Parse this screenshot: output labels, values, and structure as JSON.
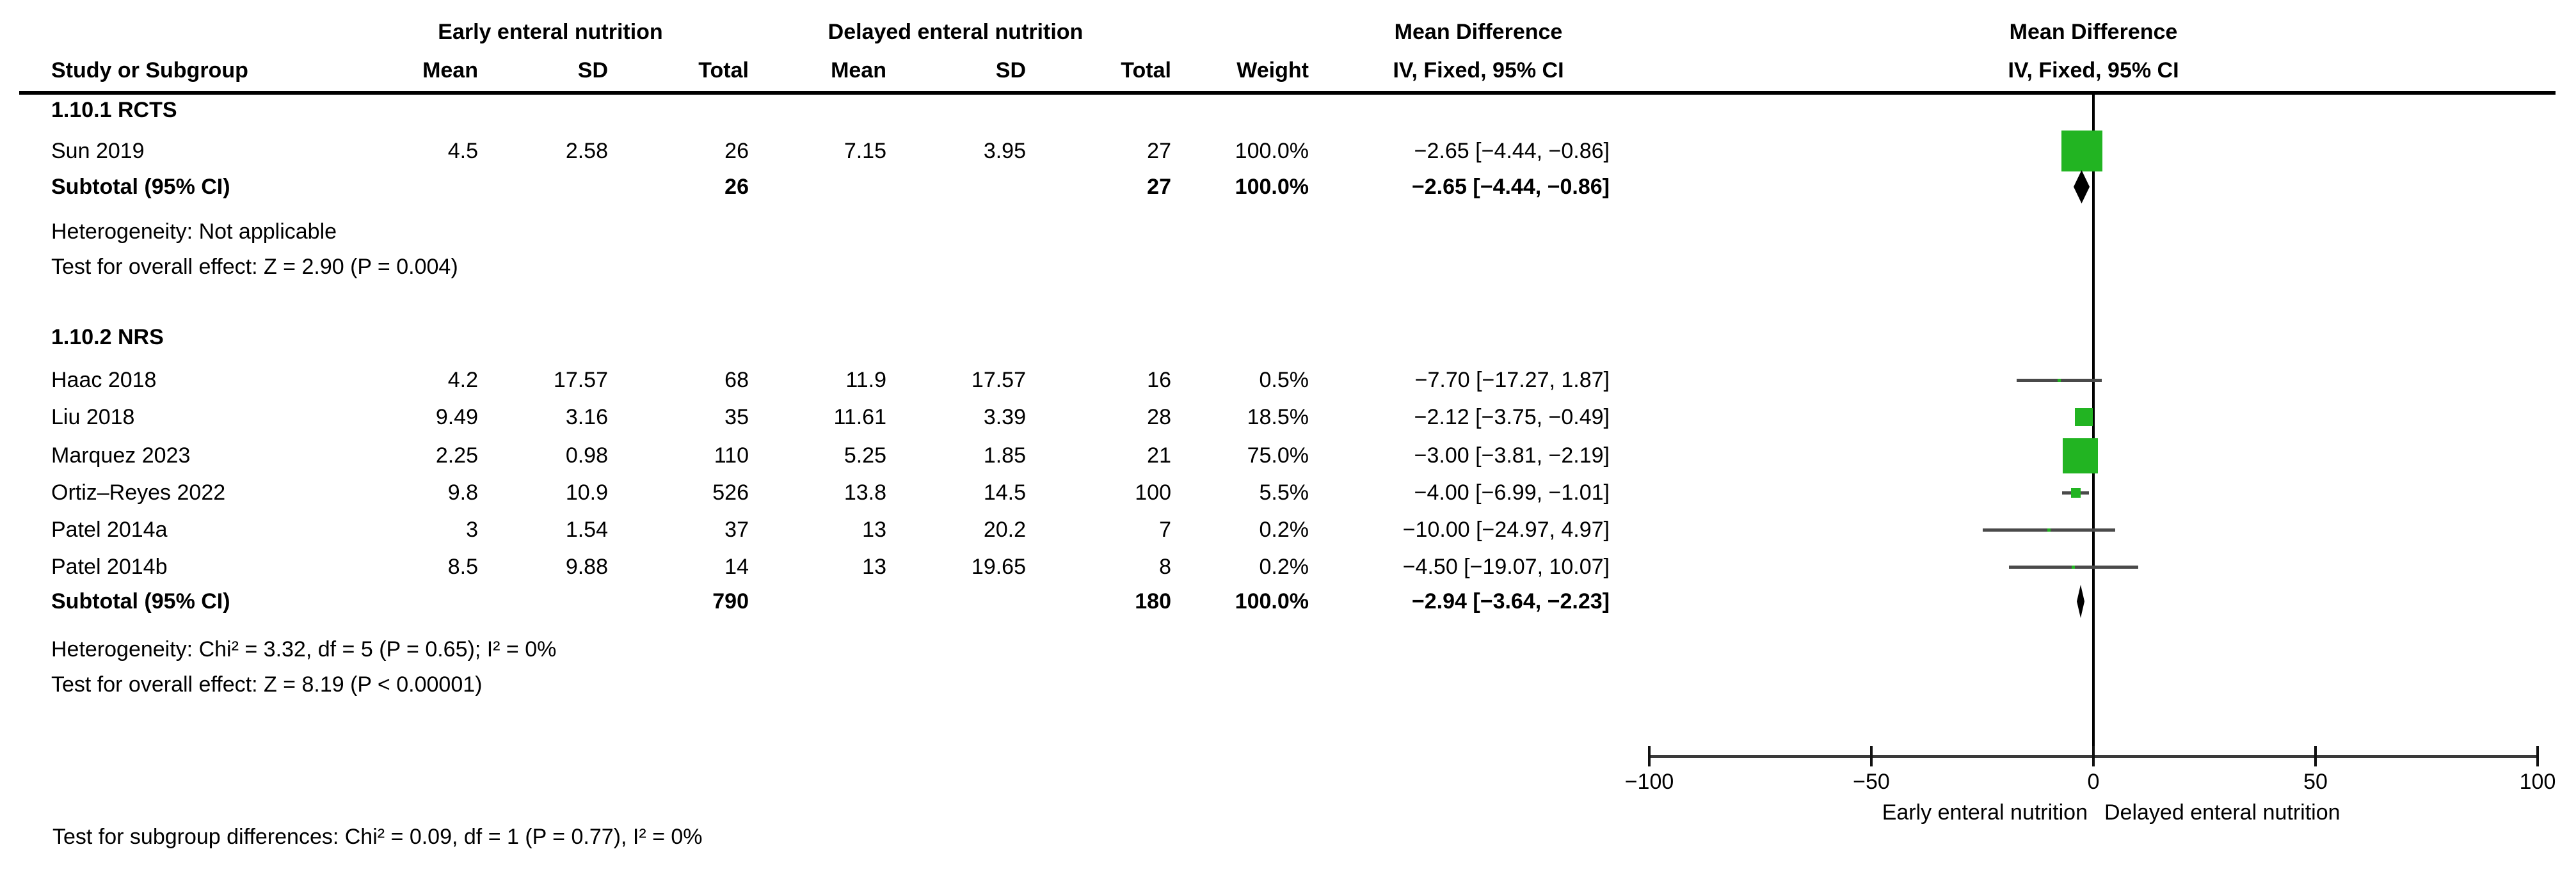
{
  "table": {
    "study_col_label": "Study or Subgroup",
    "group1_label": "Early enteral nutrition",
    "group2_label": "Delayed enteral nutrition",
    "effect_label": "Mean Difference",
    "method_label": "IV, Fixed, 95% CI",
    "col_mean": "Mean",
    "col_sd": "SD",
    "col_total": "Total",
    "col_weight": "Weight"
  },
  "plot_header": {
    "effect_label": "Mean Difference",
    "method_label": "IV, Fixed, 95% CI"
  },
  "subgroups": [
    {
      "title": "1.10.1 RCTS",
      "studies": [
        {
          "name": "Sun 2019",
          "mean1": "4.5",
          "sd1": "2.58",
          "total1": "26",
          "mean2": "7.15",
          "sd2": "3.95",
          "total2": "27",
          "weight": "100.0%",
          "ci_text": "−2.65 [−4.44, −0.86]",
          "md": -2.65,
          "ci_low": -4.44,
          "ci_high": -0.86,
          "weight_pct": 100.0
        }
      ],
      "subtotal": {
        "label": "Subtotal (95% CI)",
        "total1": "26",
        "total2": "27",
        "weight": "100.0%",
        "ci_text": "−2.65 [−4.44, −0.86]",
        "md": -2.65,
        "ci_low": -4.44,
        "ci_high": -0.86
      },
      "heterogeneity": "Heterogeneity: Not applicable",
      "overall_effect": "Test for overall effect: Z = 2.90 (P = 0.004)"
    },
    {
      "title": "1.10.2 NRS",
      "studies": [
        {
          "name": "Haac 2018",
          "mean1": "4.2",
          "sd1": "17.57",
          "total1": "68",
          "mean2": "11.9",
          "sd2": "17.57",
          "total2": "16",
          "weight": "0.5%",
          "ci_text": "−7.70 [−17.27, 1.87]",
          "md": -7.7,
          "ci_low": -17.27,
          "ci_high": 1.87,
          "weight_pct": 0.5
        },
        {
          "name": "Liu 2018",
          "mean1": "9.49",
          "sd1": "3.16",
          "total1": "35",
          "mean2": "11.61",
          "sd2": "3.39",
          "total2": "28",
          "weight": "18.5%",
          "ci_text": "−2.12 [−3.75, −0.49]",
          "md": -2.12,
          "ci_low": -3.75,
          "ci_high": -0.49,
          "weight_pct": 18.5
        },
        {
          "name": "Marquez 2023",
          "mean1": "2.25",
          "sd1": "0.98",
          "total1": "110",
          "mean2": "5.25",
          "sd2": "1.85",
          "total2": "21",
          "weight": "75.0%",
          "ci_text": "−3.00 [−3.81, −2.19]",
          "md": -3.0,
          "ci_low": -3.81,
          "ci_high": -2.19,
          "weight_pct": 75.0
        },
        {
          "name": "Ortiz–Reyes 2022",
          "mean1": "9.8",
          "sd1": "10.9",
          "total1": "526",
          "mean2": "13.8",
          "sd2": "14.5",
          "total2": "100",
          "weight": "5.5%",
          "ci_text": "−4.00 [−6.99, −1.01]",
          "md": -4.0,
          "ci_low": -6.99,
          "ci_high": -1.01,
          "weight_pct": 5.5
        },
        {
          "name": "Patel 2014a",
          "mean1": "3",
          "sd1": "1.54",
          "total1": "37",
          "mean2": "13",
          "sd2": "20.2",
          "total2": "7",
          "weight": "0.2%",
          "ci_text": "−10.00 [−24.97, 4.97]",
          "md": -10.0,
          "ci_low": -24.97,
          "ci_high": 4.97,
          "weight_pct": 0.2
        },
        {
          "name": "Patel 2014b",
          "mean1": "8.5",
          "sd1": "9.88",
          "total1": "14",
          "mean2": "13",
          "sd2": "19.65",
          "total2": "8",
          "weight": "0.2%",
          "ci_text": "−4.50 [−19.07, 10.07]",
          "md": -4.5,
          "ci_low": -19.07,
          "ci_high": 10.07,
          "weight_pct": 0.2
        }
      ],
      "subtotal": {
        "label": "Subtotal (95% CI)",
        "total1": "790",
        "total2": "180",
        "weight": "100.0%",
        "ci_text": "−2.94 [−3.64, −2.23]",
        "md": -2.94,
        "ci_low": -3.64,
        "ci_high": -2.23
      },
      "heterogeneity": "Heterogeneity: Chi² = 3.32, df = 5 (P = 0.65); I² = 0%",
      "overall_effect": "Test for overall effect: Z = 8.19 (P < 0.00001)"
    }
  ],
  "footer": {
    "subgroup_diff": "Test for subgroup differences: Chi² = 0.09, df = 1 (P = 0.77), I² = 0%"
  },
  "axis": {
    "tick_values": [
      -100,
      -50,
      0,
      50,
      100
    ],
    "tick_labels": [
      "−100",
      "−50",
      "0",
      "50",
      "100"
    ],
    "favour_left": "Early enteral nutrition",
    "favour_right": "Delayed enteral nutrition"
  },
  "colors": {
    "marker_green": "#22b422",
    "diamond_black": "#000000",
    "ci_line": "#4a4a4a",
    "axis_line": "#3a3a3a",
    "rule_black": "#000000"
  },
  "chart_data": {
    "type": "forest",
    "title": "Mean Difference, IV, Fixed, 95% CI — Early enteral nutrition vs Delayed enteral nutrition",
    "effect_measure": "Mean Difference",
    "model": "IV, Fixed, 95% CI",
    "xlim": [
      -100,
      100
    ],
    "x_ticks": [
      -100,
      -50,
      0,
      50,
      100
    ],
    "favours": [
      "Early enteral nutrition",
      "Delayed enteral nutrition"
    ],
    "subgroups": [
      {
        "name": "1.10.1 RCTS",
        "studies": [
          {
            "study": "Sun 2019",
            "md": -2.65,
            "ci": [
              -4.44,
              -0.86
            ],
            "weight_pct": 100.0
          }
        ],
        "subtotal": {
          "md": -2.65,
          "ci": [
            -4.44,
            -0.86
          ]
        },
        "heterogeneity": "Not applicable",
        "overall_effect": "Z = 2.90 (P = 0.004)"
      },
      {
        "name": "1.10.2 NRS",
        "studies": [
          {
            "study": "Haac 2018",
            "md": -7.7,
            "ci": [
              -17.27,
              1.87
            ],
            "weight_pct": 0.5
          },
          {
            "study": "Liu 2018",
            "md": -2.12,
            "ci": [
              -3.75,
              -0.49
            ],
            "weight_pct": 18.5
          },
          {
            "study": "Marquez 2023",
            "md": -3.0,
            "ci": [
              -3.81,
              -2.19
            ],
            "weight_pct": 75.0
          },
          {
            "study": "Ortiz–Reyes 2022",
            "md": -4.0,
            "ci": [
              -6.99,
              -1.01
            ],
            "weight_pct": 5.5
          },
          {
            "study": "Patel 2014a",
            "md": -10.0,
            "ci": [
              -24.97,
              4.97
            ],
            "weight_pct": 0.2
          },
          {
            "study": "Patel 2014b",
            "md": -4.5,
            "ci": [
              -19.07,
              10.07
            ],
            "weight_pct": 0.2
          }
        ],
        "subtotal": {
          "md": -2.94,
          "ci": [
            -3.64,
            -2.23
          ]
        },
        "heterogeneity": "Chi² = 3.32, df = 5 (P = 0.65); I² = 0%",
        "overall_effect": "Z = 8.19 (P < 0.00001)"
      }
    ],
    "subgroup_difference": "Chi² = 0.09, df = 1 (P = 0.77), I² = 0%"
  }
}
